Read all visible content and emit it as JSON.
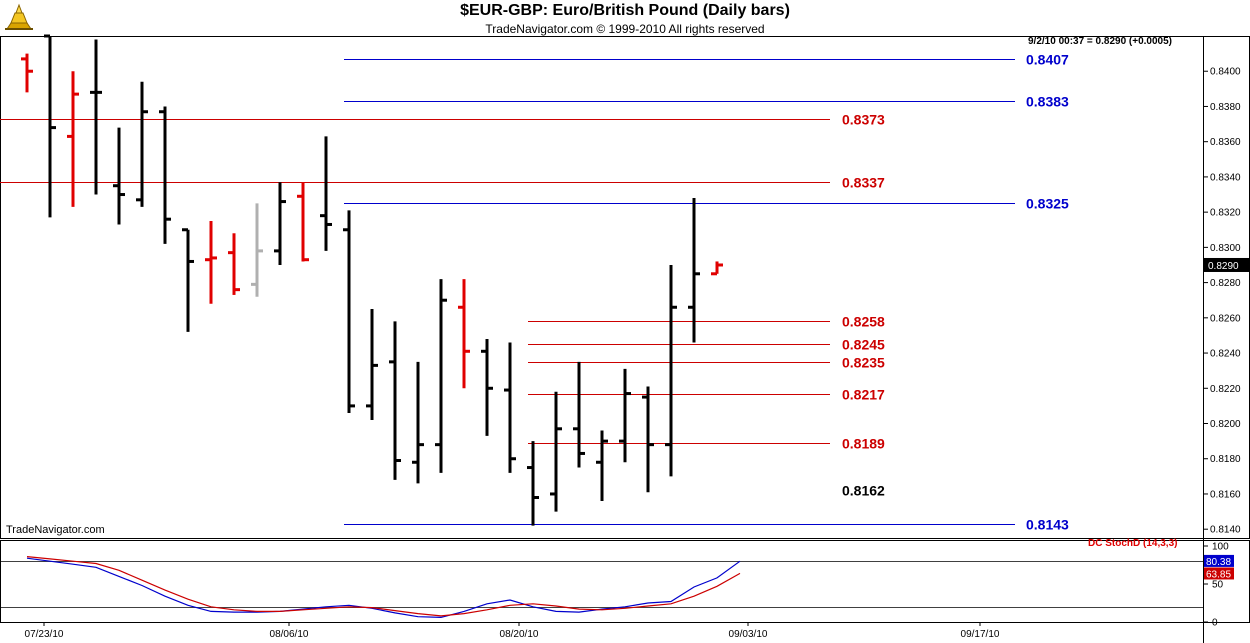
{
  "header": {
    "title": "$EUR-GBP:  Euro/British Pound  (Daily bars)",
    "copyright": "TradeNavigator.com © 1999-2010 All rights reserved"
  },
  "readout": "9/2/10 00:37 = 0.8290 (+0.0005)",
  "watermark": "TradeNavigator.com",
  "indicator_label": "DC StochD (14,3,3)",
  "colors": {
    "up": "#000000",
    "down": "#e00000",
    "neutral": "#b0b0b0",
    "blue": "#0000cc",
    "red": "#cc0000"
  },
  "chart_data": [
    {
      "type": "bar",
      "subtype": "ohlc",
      "title": "$EUR-GBP:  Euro/British Pound  (Daily bars)",
      "ylim": [
        0.8135,
        0.842
      ],
      "y_ticks": [
        "0.8400",
        "0.8380",
        "0.8360",
        "0.8340",
        "0.8320",
        "0.8300",
        "0.8280",
        "0.8260",
        "0.8240",
        "0.8220",
        "0.8200",
        "0.8180",
        "0.8160",
        "0.8140"
      ],
      "x_ticks": [
        "07/23/10",
        "08/06/10",
        "08/20/10",
        "09/03/10",
        "09/17/10"
      ],
      "last_price": "0.8290",
      "bars": [
        {
          "o": 0.8407,
          "h": 0.841,
          "l": 0.8388,
          "c": 0.84,
          "color": "down"
        },
        {
          "o": 0.842,
          "h": 0.842,
          "l": 0.8317,
          "c": 0.8368,
          "color": "up"
        },
        {
          "o": 0.8363,
          "h": 0.84,
          "l": 0.8323,
          "c": 0.8387,
          "color": "down"
        },
        {
          "o": 0.8388,
          "h": 0.8418,
          "l": 0.833,
          "c": 0.8388,
          "color": "up"
        },
        {
          "o": 0.8335,
          "h": 0.8368,
          "l": 0.8313,
          "c": 0.833,
          "color": "up"
        },
        {
          "o": 0.8327,
          "h": 0.8394,
          "l": 0.8323,
          "c": 0.8377,
          "color": "up"
        },
        {
          "o": 0.8377,
          "h": 0.838,
          "l": 0.8302,
          "c": 0.8316,
          "color": "up"
        },
        {
          "o": 0.831,
          "h": 0.831,
          "l": 0.8252,
          "c": 0.8292,
          "color": "up"
        },
        {
          "o": 0.8293,
          "h": 0.8315,
          "l": 0.8268,
          "c": 0.8294,
          "color": "down"
        },
        {
          "o": 0.8297,
          "h": 0.8308,
          "l": 0.8273,
          "c": 0.8276,
          "color": "down"
        },
        {
          "o": 0.8279,
          "h": 0.8325,
          "l": 0.8272,
          "c": 0.8298,
          "color": "neutral"
        },
        {
          "o": 0.8298,
          "h": 0.8337,
          "l": 0.829,
          "c": 0.8326,
          "color": "up"
        },
        {
          "o": 0.8329,
          "h": 0.8337,
          "l": 0.8292,
          "c": 0.8293,
          "color": "down"
        },
        {
          "o": 0.8318,
          "h": 0.8363,
          "l": 0.8298,
          "c": 0.8313,
          "color": "up"
        },
        {
          "o": 0.831,
          "h": 0.8321,
          "l": 0.8206,
          "c": 0.821,
          "color": "up"
        },
        {
          "o": 0.821,
          "h": 0.8265,
          "l": 0.8202,
          "c": 0.8233,
          "color": "up"
        },
        {
          "o": 0.8235,
          "h": 0.8258,
          "l": 0.8168,
          "c": 0.8179,
          "color": "up"
        },
        {
          "o": 0.8178,
          "h": 0.8235,
          "l": 0.8166,
          "c": 0.8188,
          "color": "up"
        },
        {
          "o": 0.8188,
          "h": 0.8282,
          "l": 0.8172,
          "c": 0.827,
          "color": "up"
        },
        {
          "o": 0.8266,
          "h": 0.8282,
          "l": 0.822,
          "c": 0.8241,
          "color": "down"
        },
        {
          "o": 0.8241,
          "h": 0.8248,
          "l": 0.8193,
          "c": 0.822,
          "color": "up"
        },
        {
          "o": 0.8219,
          "h": 0.8246,
          "l": 0.8172,
          "c": 0.818,
          "color": "up"
        },
        {
          "o": 0.8175,
          "h": 0.819,
          "l": 0.8142,
          "c": 0.8158,
          "color": "up"
        },
        {
          "o": 0.816,
          "h": 0.8218,
          "l": 0.815,
          "c": 0.8197,
          "color": "up"
        },
        {
          "o": 0.8197,
          "h": 0.8235,
          "l": 0.8175,
          "c": 0.8183,
          "color": "up"
        },
        {
          "o": 0.8178,
          "h": 0.8196,
          "l": 0.8156,
          "c": 0.819,
          "color": "up"
        },
        {
          "o": 0.819,
          "h": 0.8231,
          "l": 0.8178,
          "c": 0.8217,
          "color": "up"
        },
        {
          "o": 0.8215,
          "h": 0.8221,
          "l": 0.8161,
          "c": 0.8188,
          "color": "up"
        },
        {
          "o": 0.8188,
          "h": 0.829,
          "l": 0.817,
          "c": 0.8266,
          "color": "up"
        },
        {
          "o": 0.8266,
          "h": 0.8328,
          "l": 0.8246,
          "c": 0.8285,
          "color": "up"
        },
        {
          "o": 0.8285,
          "h": 0.8292,
          "l": 0.8285,
          "c": 0.829,
          "color": "down"
        }
      ],
      "levels": [
        {
          "value": 0.8407,
          "label": "0.8407",
          "color": "blue",
          "x_start_bar": 14
        },
        {
          "value": 0.8383,
          "label": "0.8383",
          "color": "blue",
          "x_start_bar": 14
        },
        {
          "value": 0.8373,
          "label": "0.8373",
          "color": "red",
          "x_start_bar": 0
        },
        {
          "value": 0.8337,
          "label": "0.8337",
          "color": "red",
          "x_start_bar": 0
        },
        {
          "value": 0.8325,
          "label": "0.8325",
          "color": "blue",
          "x_start_bar": 14
        },
        {
          "value": 0.8258,
          "label": "0.8258",
          "color": "red",
          "x_start_bar": 22
        },
        {
          "value": 0.8245,
          "label": "0.8245",
          "color": "red",
          "x_start_bar": 22
        },
        {
          "value": 0.8235,
          "label": "0.8235",
          "color": "red",
          "x_start_bar": 22
        },
        {
          "value": 0.8217,
          "label": "0.8217",
          "color": "red",
          "x_start_bar": 22
        },
        {
          "value": 0.8189,
          "label": "0.8189",
          "color": "red",
          "x_start_bar": 22
        },
        {
          "value": 0.8162,
          "label": "0.8162",
          "color": "black",
          "x_start_bar": 22
        },
        {
          "value": 0.8143,
          "label": "0.8143",
          "color": "blue",
          "x_start_bar": 14
        }
      ]
    },
    {
      "type": "line",
      "title": "DC StochD (14,3,3)",
      "ylim": [
        0,
        100
      ],
      "y_ticks": [
        "100",
        "50",
        "0"
      ],
      "reference_lines": [
        80,
        20
      ],
      "last_values": [
        "80.38",
        "63.85"
      ],
      "series": [
        {
          "color": "blue",
          "values": [
            84,
            80,
            76,
            72,
            60,
            48,
            34,
            22,
            14,
            13,
            13,
            14,
            17,
            20,
            22,
            18,
            12,
            7,
            6,
            14,
            24,
            29,
            20,
            14,
            13,
            17,
            20,
            25,
            27,
            46,
            58,
            80
          ]
        },
        {
          "color": "red",
          "values": [
            86,
            83,
            80,
            77,
            68,
            55,
            42,
            30,
            20,
            16,
            14,
            14,
            16,
            18,
            20,
            19,
            15,
            11,
            8,
            11,
            16,
            22,
            24,
            21,
            17,
            16,
            18,
            21,
            24,
            34,
            47,
            64
          ]
        }
      ]
    }
  ]
}
